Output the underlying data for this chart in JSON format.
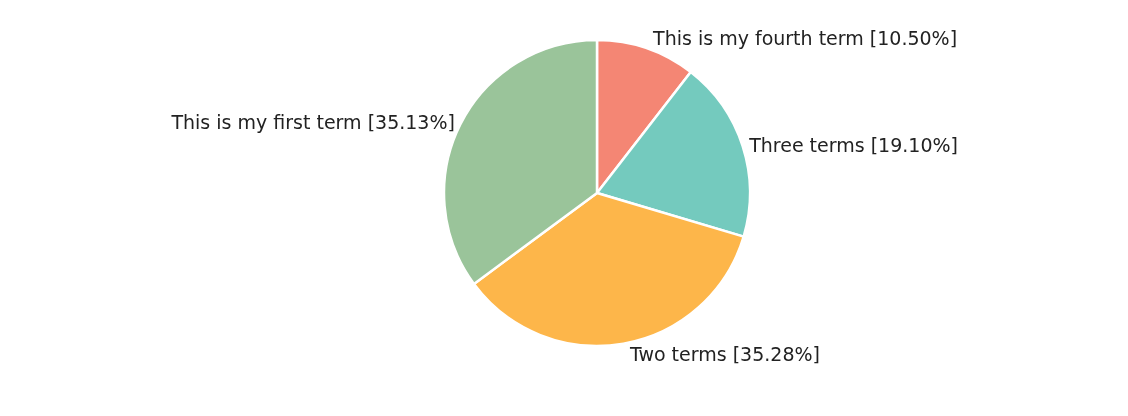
{
  "chart_data": {
    "type": "pie",
    "categories": [
      "This is my fourth term",
      "Three terms",
      "Two terms",
      "This is my first term"
    ],
    "values": [
      10.5,
      19.1,
      35.28,
      35.13
    ],
    "value_labels": [
      "[10.50%]",
      "[19.10%]",
      "[35.28%]",
      "[35.13%]"
    ],
    "colors": [
      "#f48674",
      "#74cabe",
      "#fdb64a",
      "#9ac49a"
    ],
    "legend": false
  }
}
